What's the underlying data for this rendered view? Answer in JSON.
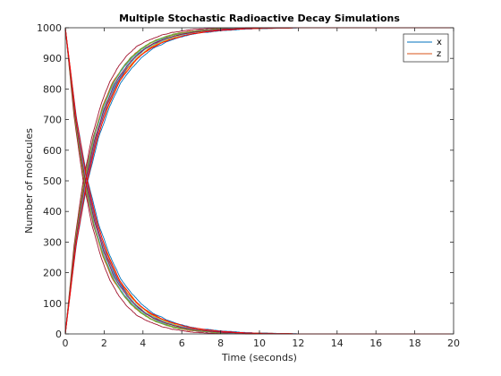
{
  "chart_data": {
    "type": "line",
    "title": "Multiple Stochastic Radioactive Decay Simulations",
    "xlabel": "Time (seconds)",
    "ylabel": "Number of molecules",
    "xlim": [
      0,
      20
    ],
    "ylim": [
      0,
      1000
    ],
    "x_ticks": [
      "0",
      "2",
      "4",
      "6",
      "8",
      "10",
      "12",
      "14",
      "16",
      "18",
      "20"
    ],
    "y_ticks": [
      "0",
      "100",
      "200",
      "300",
      "400",
      "500",
      "600",
      "700",
      "800",
      "900",
      "1000"
    ],
    "grid": false,
    "legend_position": "top-right",
    "legend": [
      {
        "name": "x",
        "color": "#0072BD"
      },
      {
        "name": "z",
        "color": "#D95319"
      }
    ],
    "run_colors": [
      "#0072BD",
      "#D95319",
      "#EDB120",
      "#7E2F8E",
      "#77AC30",
      "#4DBEEE",
      "#A2142F",
      "#0072BD",
      "#D95319",
      "#EDB120",
      "#7E2F8E",
      "#77AC30",
      "#4DBEEE",
      "#A2142F",
      "#FF0000"
    ],
    "x": [
      0,
      0.5,
      1,
      1.5,
      2,
      2.5,
      3,
      3.5,
      4,
      4.5,
      5,
      5.5,
      6,
      7,
      8,
      9,
      10,
      11,
      12,
      13,
      14
    ],
    "series": [
      {
        "name": "x",
        "values": [
          1000,
          705,
          500,
          355,
          255,
          180,
          130,
          92,
          66,
          48,
          35,
          25,
          18,
          9,
          4,
          2,
          1,
          0,
          0,
          0,
          0
        ]
      },
      {
        "name": "z",
        "values": [
          0,
          295,
          500,
          645,
          745,
          820,
          870,
          908,
          934,
          952,
          965,
          975,
          982,
          991,
          996,
          998,
          999,
          1000,
          1000,
          1000,
          1000
        ]
      }
    ]
  }
}
